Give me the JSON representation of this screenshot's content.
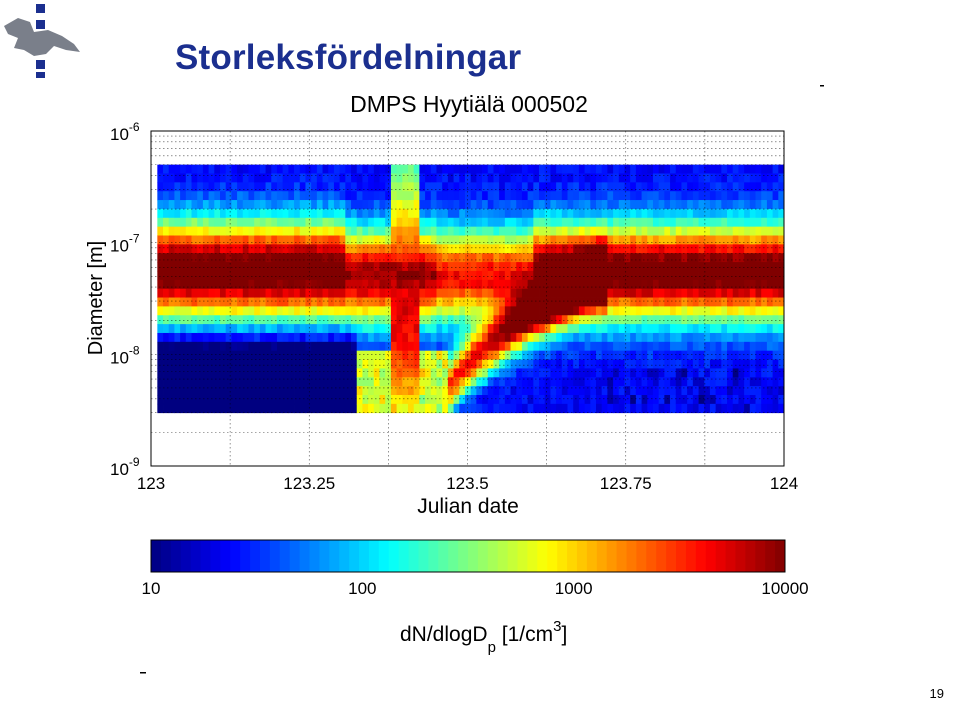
{
  "slide": {
    "title": "Storleksfördelningar",
    "page_number": "19"
  },
  "colors": {
    "title": "#1b2f8f",
    "logo": "#1b2f8f"
  },
  "chart_data": {
    "type": "heatmap",
    "title": "DMPS Hyytiälä 000502",
    "xlabel": "Julian date",
    "ylabel": "Diameter [m]",
    "x_ticks": [
      "123",
      "123.25",
      "123.5",
      "123.75",
      "124"
    ],
    "x_tick_values": [
      123,
      123.25,
      123.5,
      123.75,
      124
    ],
    "y_ticks": [
      {
        "base": "10",
        "exp": "-6",
        "value": 1e-06
      },
      {
        "base": "10",
        "exp": "-7",
        "value": 1e-07
      },
      {
        "base": "10",
        "exp": "-8",
        "value": 1e-08
      },
      {
        "base": "10",
        "exp": "-9",
        "value": 1e-09
      }
    ],
    "xlim": [
      123,
      124
    ],
    "ylim": [
      1e-09,
      1e-06
    ],
    "y_scale": "log",
    "data_extent": {
      "x": [
        123.01,
        124
      ],
      "diameter": [
        3e-09,
        5e-07
      ]
    },
    "grid": "dotted",
    "colorbar": {
      "scale": "log",
      "range": [
        10,
        10000
      ],
      "ticks": [
        "10",
        "100",
        "1000",
        "10000"
      ],
      "label_main": "dN/dlogD",
      "label_sub": "p",
      "label_rest": " [1/cm",
      "label_sup": "3",
      "label_end": "]",
      "colormap": "jet"
    },
    "features": [
      {
        "description": "accumulation mode",
        "diameter_range": [
          5e-08,
          1.5e-07
        ],
        "concentration": 5000
      },
      {
        "description": "new particle formation event (banana)",
        "start_x": 123.46,
        "end_x": 123.68,
        "concentration": 8000
      }
    ]
  }
}
